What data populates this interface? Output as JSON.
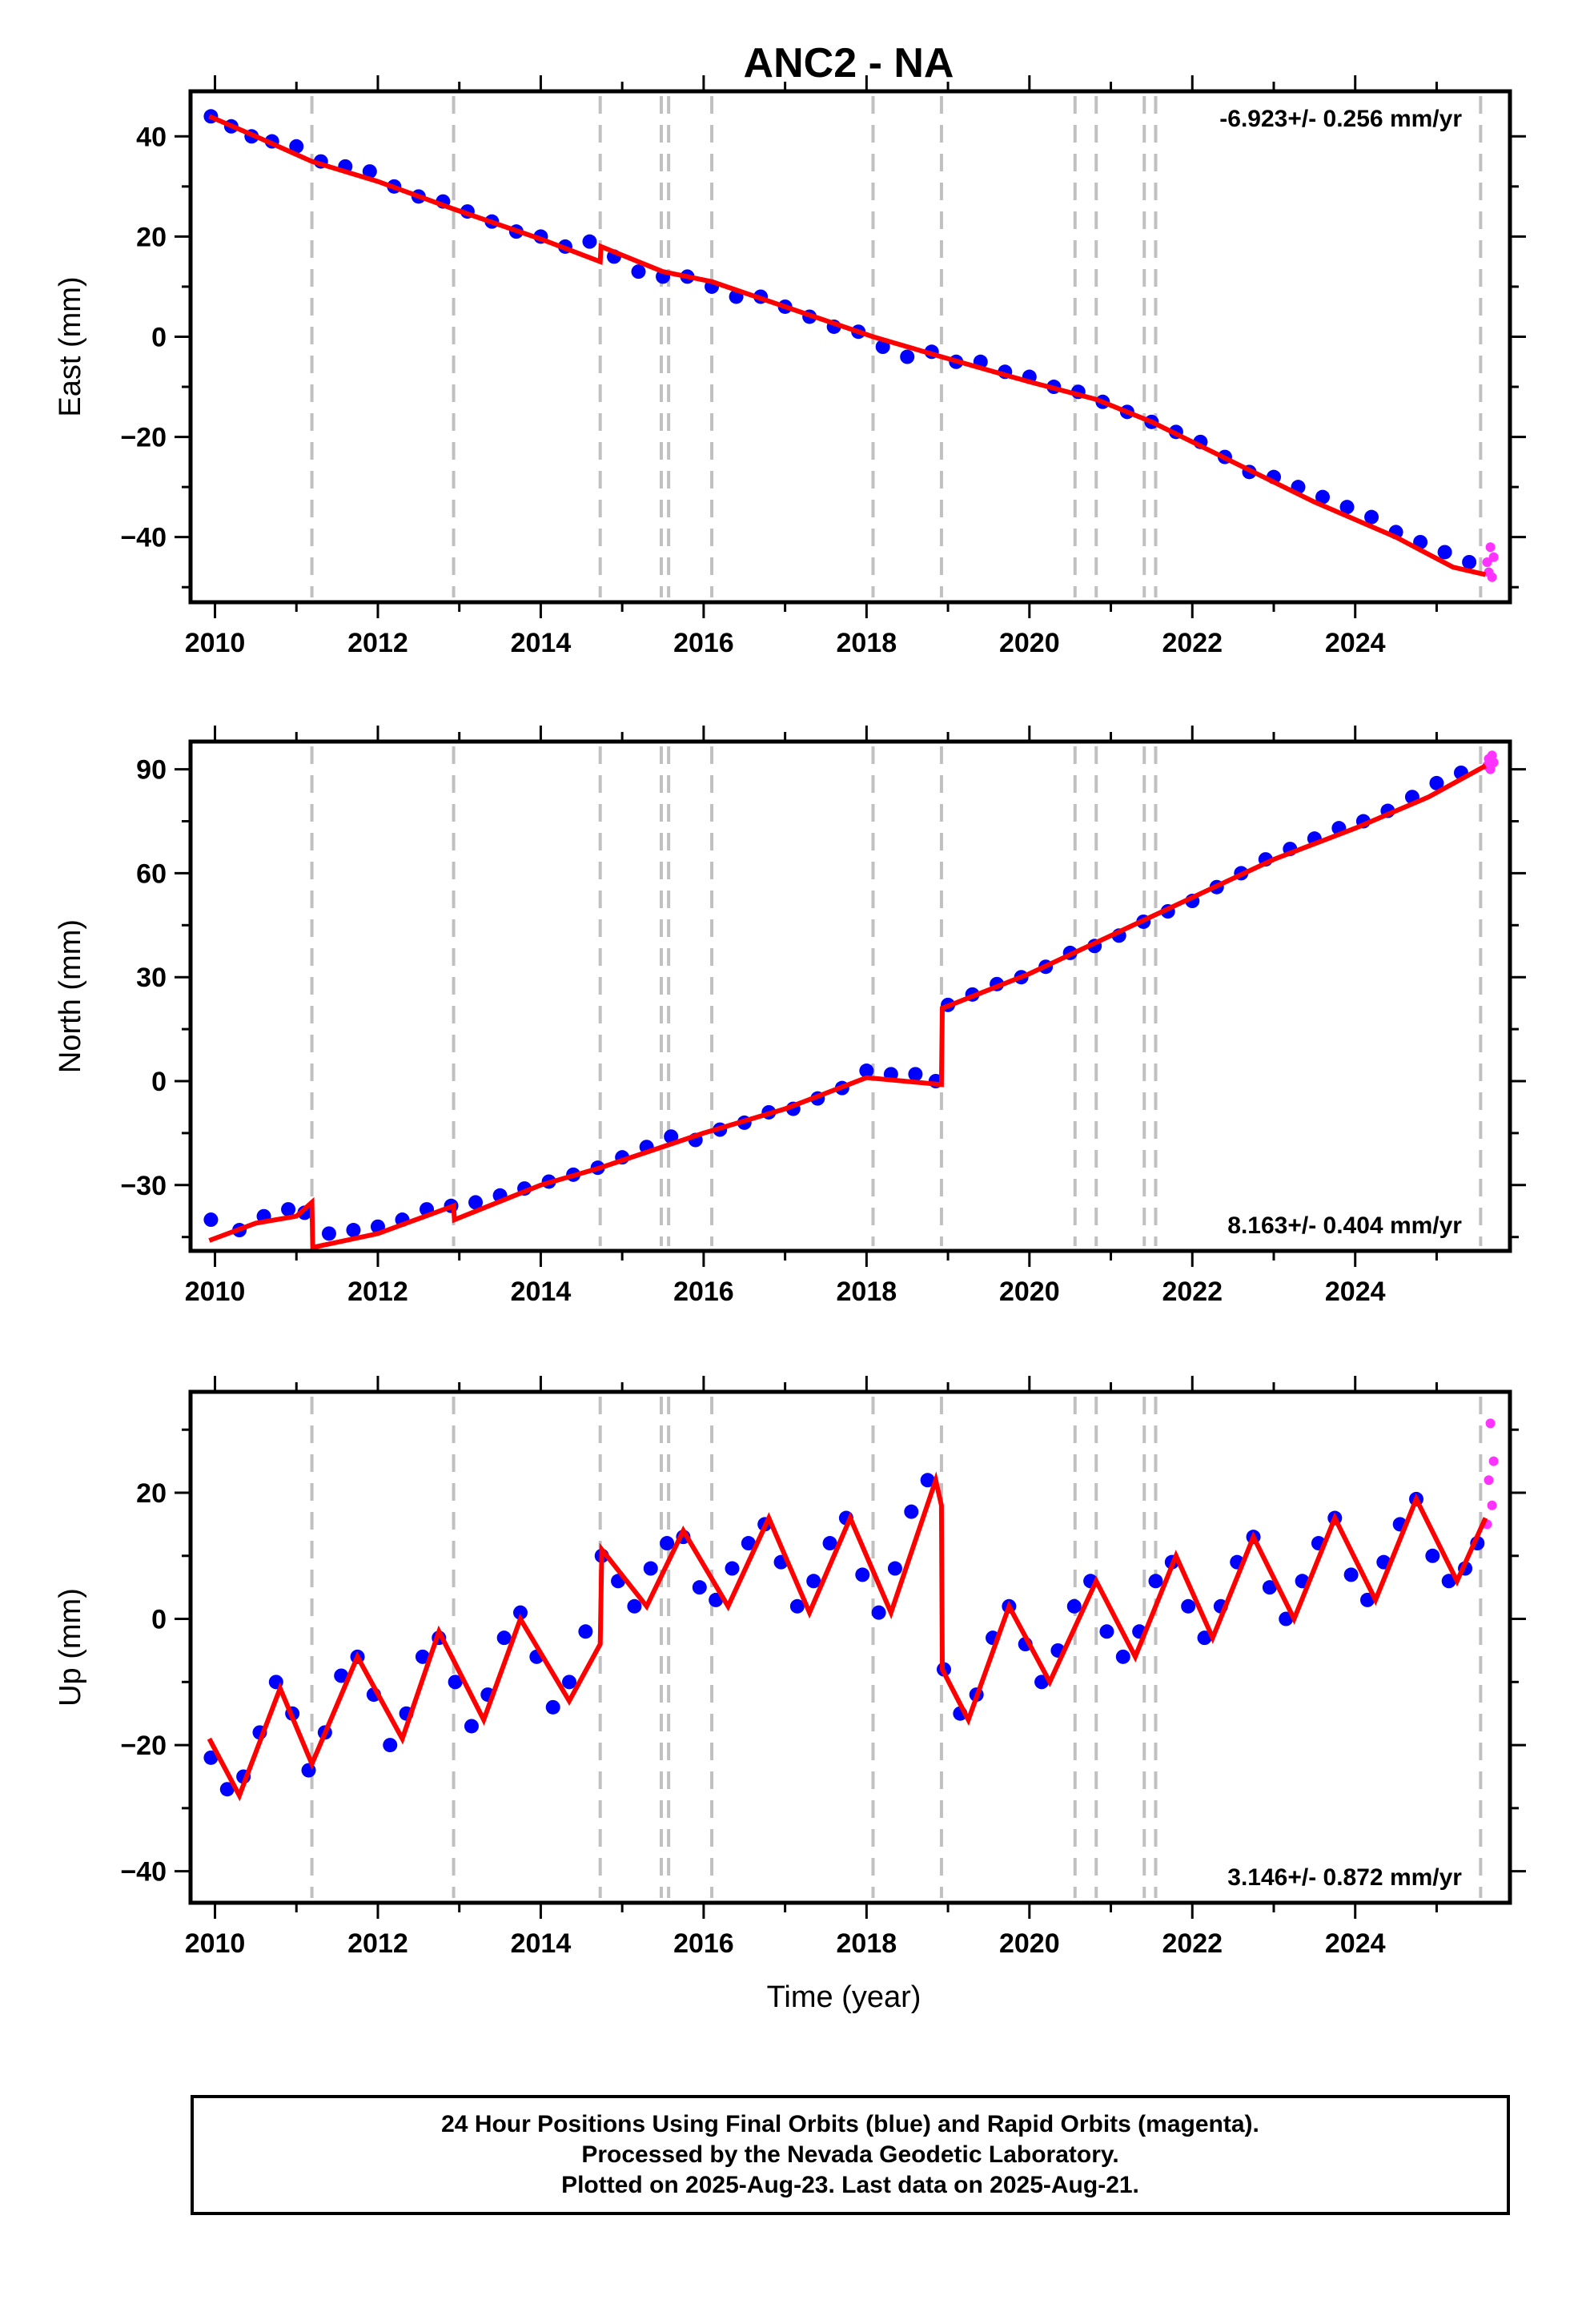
{
  "figure": {
    "title": "ANC2 - NA",
    "footer_lines": [
      "24 Hour Positions Using Final Orbits (blue) and Rapid Orbits (magenta).",
      "Processed by the Nevada Geodetic Laboratory.",
      "Plotted on 2025-Aug-23. Last data on 2025-Aug-21."
    ]
  },
  "colors": {
    "final_orbits": "#0000ff",
    "rapid_orbits": "#ff33ff",
    "model": "#ff0000",
    "event_lines": "#c0c0c0",
    "frame": "#000000"
  },
  "chart_data": [
    {
      "type": "scatter",
      "name": "east",
      "ylabel": "East (mm)",
      "xlabel": "",
      "xlim": [
        2009.7,
        2025.9
      ],
      "ylim": [
        -53,
        49
      ],
      "xticks": [
        2010,
        2012,
        2014,
        2016,
        2018,
        2020,
        2022,
        2024
      ],
      "yticks": [
        -40,
        -20,
        0,
        20,
        40
      ],
      "rate_label": "-6.923+/- 0.256 mm/yr",
      "rate_position": "top-right",
      "grid": false,
      "event_lines": [
        2011.19,
        2012.93,
        2014.73,
        2015.48,
        2015.57,
        2016.1,
        2018.08,
        2018.92,
        2020.56,
        2020.82,
        2021.41,
        2021.55,
        2025.54
      ],
      "model_curve": [
        [
          2009.93,
          44
        ],
        [
          2010.5,
          40
        ],
        [
          2011.19,
          35
        ],
        [
          2012.0,
          31
        ],
        [
          2012.93,
          25.5
        ],
        [
          2014.0,
          19.5
        ],
        [
          2014.73,
          15
        ],
        [
          2014.74,
          18
        ],
        [
          2015.5,
          13
        ],
        [
          2016.1,
          11
        ],
        [
          2017.0,
          6
        ],
        [
          2018.08,
          0
        ],
        [
          2018.92,
          -4
        ],
        [
          2020.0,
          -9
        ],
        [
          2020.82,
          -12.5
        ],
        [
          2021.5,
          -17
        ],
        [
          2022.5,
          -25
        ],
        [
          2023.5,
          -33
        ],
        [
          2024.5,
          -40
        ],
        [
          2025.2,
          -46
        ],
        [
          2025.6,
          -47.5
        ]
      ],
      "series": [
        {
          "name": "Final Orbits",
          "x": [
            2009.95,
            2010.2,
            2010.45,
            2010.7,
            2011.0,
            2011.3,
            2011.6,
            2011.9,
            2012.2,
            2012.5,
            2012.8,
            2013.1,
            2013.4,
            2013.7,
            2014.0,
            2014.3,
            2014.6,
            2014.9,
            2015.2,
            2015.5,
            2015.8,
            2016.1,
            2016.4,
            2016.7,
            2017.0,
            2017.3,
            2017.6,
            2017.9,
            2018.2,
            2018.5,
            2018.8,
            2019.1,
            2019.4,
            2019.7,
            2020.0,
            2020.3,
            2020.6,
            2020.9,
            2021.2,
            2021.5,
            2021.8,
            2022.1,
            2022.4,
            2022.7,
            2023.0,
            2023.3,
            2023.6,
            2023.9,
            2024.2,
            2024.5,
            2024.8,
            2025.1,
            2025.4
          ],
          "y": [
            44,
            42,
            40,
            39,
            38,
            35,
            34,
            33,
            30,
            28,
            27,
            25,
            23,
            21,
            20,
            18,
            19,
            16,
            13,
            12,
            12,
            10,
            8,
            8,
            6,
            4,
            2,
            1,
            -2,
            -4,
            -3,
            -5,
            -5,
            -7,
            -8,
            -10,
            -11,
            -13,
            -15,
            -17,
            -19,
            -21,
            -24,
            -27,
            -28,
            -30,
            -32,
            -34,
            -36,
            -39,
            -41,
            -43,
            -45
          ]
        },
        {
          "name": "Rapid Orbits",
          "x": [
            2025.62,
            2025.64,
            2025.66,
            2025.68,
            2025.7
          ],
          "y": [
            -45,
            -47,
            -42,
            -48,
            -44
          ]
        }
      ]
    },
    {
      "type": "scatter",
      "name": "north",
      "ylabel": "North (mm)",
      "xlabel": "",
      "xlim": [
        2009.7,
        2025.9
      ],
      "ylim": [
        -49,
        98
      ],
      "xticks": [
        2010,
        2012,
        2014,
        2016,
        2018,
        2020,
        2022,
        2024
      ],
      "yticks": [
        -30,
        0,
        30,
        60,
        90
      ],
      "rate_label": "8.163+/- 0.404 mm/yr",
      "rate_position": "bottom-right",
      "grid": false,
      "event_lines": [
        2011.19,
        2012.93,
        2014.73,
        2015.48,
        2015.57,
        2016.1,
        2018.08,
        2018.92,
        2020.56,
        2020.82,
        2021.41,
        2021.55,
        2025.54
      ],
      "model_curve": [
        [
          2009.93,
          -46
        ],
        [
          2010.5,
          -41
        ],
        [
          2011.0,
          -39
        ],
        [
          2011.19,
          -35
        ],
        [
          2011.2,
          -48
        ],
        [
          2012.0,
          -44
        ],
        [
          2012.93,
          -36
        ],
        [
          2012.94,
          -40
        ],
        [
          2014.0,
          -30
        ],
        [
          2014.73,
          -25
        ],
        [
          2016.0,
          -15
        ],
        [
          2017.0,
          -8
        ],
        [
          2018.0,
          1
        ],
        [
          2018.92,
          -1
        ],
        [
          2018.93,
          21
        ],
        [
          2020.0,
          31
        ],
        [
          2021.0,
          42
        ],
        [
          2022.0,
          53
        ],
        [
          2023.0,
          64
        ],
        [
          2024.0,
          73
        ],
        [
          2024.9,
          82
        ],
        [
          2025.6,
          91
        ]
      ],
      "series": [
        {
          "name": "Final Orbits",
          "x": [
            2009.95,
            2010.3,
            2010.6,
            2010.9,
            2011.1,
            2011.4,
            2011.7,
            2012.0,
            2012.3,
            2012.6,
            2012.9,
            2013.2,
            2013.5,
            2013.8,
            2014.1,
            2014.4,
            2014.7,
            2015.0,
            2015.3,
            2015.6,
            2015.9,
            2016.2,
            2016.5,
            2016.8,
            2017.1,
            2017.4,
            2017.7,
            2018.0,
            2018.3,
            2018.6,
            2018.85,
            2019.0,
            2019.3,
            2019.6,
            2019.9,
            2020.2,
            2020.5,
            2020.8,
            2021.1,
            2021.4,
            2021.7,
            2022.0,
            2022.3,
            2022.6,
            2022.9,
            2023.2,
            2023.5,
            2023.8,
            2024.1,
            2024.4,
            2024.7,
            2025.0,
            2025.3
          ],
          "y": [
            -40,
            -43,
            -39,
            -37,
            -38,
            -44,
            -43,
            -42,
            -40,
            -37,
            -36,
            -35,
            -33,
            -31,
            -29,
            -27,
            -25,
            -22,
            -19,
            -16,
            -17,
            -14,
            -12,
            -9,
            -8,
            -5,
            -2,
            3,
            2,
            2,
            0,
            22,
            25,
            28,
            30,
            33,
            37,
            39,
            42,
            46,
            49,
            52,
            56,
            60,
            64,
            67,
            70,
            73,
            75,
            78,
            82,
            86,
            89
          ]
        },
        {
          "name": "Rapid Orbits",
          "x": [
            2025.62,
            2025.64,
            2025.66,
            2025.68,
            2025.7
          ],
          "y": [
            91,
            93,
            90,
            94,
            92
          ]
        }
      ]
    },
    {
      "type": "scatter",
      "name": "up",
      "ylabel": "Up (mm)",
      "xlabel": "Time (year)",
      "xlim": [
        2009.7,
        2025.9
      ],
      "ylim": [
        -45,
        36
      ],
      "xticks": [
        2010,
        2012,
        2014,
        2016,
        2018,
        2020,
        2022,
        2024
      ],
      "yticks": [
        -40,
        -20,
        0,
        20
      ],
      "rate_label": "3.146+/- 0.872 mm/yr",
      "rate_position": "bottom-right",
      "grid": false,
      "event_lines": [
        2011.19,
        2012.93,
        2014.73,
        2015.48,
        2015.57,
        2016.1,
        2018.08,
        2018.92,
        2020.56,
        2020.82,
        2021.41,
        2021.55,
        2025.54
      ],
      "model_curve": [
        [
          2009.93,
          -19
        ],
        [
          2010.3,
          -28
        ],
        [
          2010.8,
          -11
        ],
        [
          2011.19,
          -23
        ],
        [
          2011.75,
          -6
        ],
        [
          2012.3,
          -19
        ],
        [
          2012.75,
          -2
        ],
        [
          2013.3,
          -16
        ],
        [
          2013.75,
          0
        ],
        [
          2014.35,
          -13
        ],
        [
          2014.73,
          -4
        ],
        [
          2014.75,
          11
        ],
        [
          2015.3,
          2
        ],
        [
          2015.75,
          14
        ],
        [
          2016.3,
          2
        ],
        [
          2016.8,
          16
        ],
        [
          2017.3,
          1
        ],
        [
          2017.8,
          16
        ],
        [
          2018.3,
          1
        ],
        [
          2018.85,
          22
        ],
        [
          2018.92,
          18
        ],
        [
          2018.93,
          -8
        ],
        [
          2019.25,
          -16
        ],
        [
          2019.75,
          2
        ],
        [
          2020.25,
          -10
        ],
        [
          2020.82,
          6
        ],
        [
          2021.3,
          -6
        ],
        [
          2021.8,
          10
        ],
        [
          2022.25,
          -3
        ],
        [
          2022.75,
          13
        ],
        [
          2023.25,
          0
        ],
        [
          2023.75,
          16
        ],
        [
          2024.25,
          3
        ],
        [
          2024.75,
          19
        ],
        [
          2025.25,
          6
        ],
        [
          2025.6,
          16
        ]
      ],
      "series": [
        {
          "name": "Final Orbits",
          "x": [
            2009.95,
            2010.15,
            2010.35,
            2010.55,
            2010.75,
            2010.95,
            2011.15,
            2011.35,
            2011.55,
            2011.75,
            2011.95,
            2012.15,
            2012.35,
            2012.55,
            2012.75,
            2012.95,
            2013.15,
            2013.35,
            2013.55,
            2013.75,
            2013.95,
            2014.15,
            2014.35,
            2014.55,
            2014.75,
            2014.95,
            2015.15,
            2015.35,
            2015.55,
            2015.75,
            2015.95,
            2016.15,
            2016.35,
            2016.55,
            2016.75,
            2016.95,
            2017.15,
            2017.35,
            2017.55,
            2017.75,
            2017.95,
            2018.15,
            2018.35,
            2018.55,
            2018.75,
            2018.95,
            2019.15,
            2019.35,
            2019.55,
            2019.75,
            2019.95,
            2020.15,
            2020.35,
            2020.55,
            2020.75,
            2020.95,
            2021.15,
            2021.35,
            2021.55,
            2021.75,
            2021.95,
            2022.15,
            2022.35,
            2022.55,
            2022.75,
            2022.95,
            2023.15,
            2023.35,
            2023.55,
            2023.75,
            2023.95,
            2024.15,
            2024.35,
            2024.55,
            2024.75,
            2024.95,
            2025.15,
            2025.35,
            2025.5
          ],
          "y": [
            -22,
            -27,
            -25,
            -18,
            -10,
            -15,
            -24,
            -18,
            -9,
            -6,
            -12,
            -20,
            -15,
            -6,
            -3,
            -10,
            -17,
            -12,
            -3,
            1,
            -6,
            -14,
            -10,
            -2,
            10,
            6,
            2,
            8,
            12,
            13,
            5,
            3,
            8,
            12,
            15,
            9,
            2,
            6,
            12,
            16,
            7,
            1,
            8,
            17,
            22,
            -8,
            -15,
            -12,
            -3,
            2,
            -4,
            -10,
            -5,
            2,
            6,
            -2,
            -6,
            -2,
            6,
            9,
            2,
            -3,
            2,
            9,
            13,
            5,
            0,
            6,
            12,
            16,
            7,
            3,
            9,
            15,
            19,
            10,
            6,
            8,
            12
          ]
        },
        {
          "name": "Rapid Orbits",
          "x": [
            2025.62,
            2025.64,
            2025.66,
            2025.68,
            2025.7
          ],
          "y": [
            15,
            22,
            31,
            18,
            25
          ]
        }
      ]
    }
  ]
}
